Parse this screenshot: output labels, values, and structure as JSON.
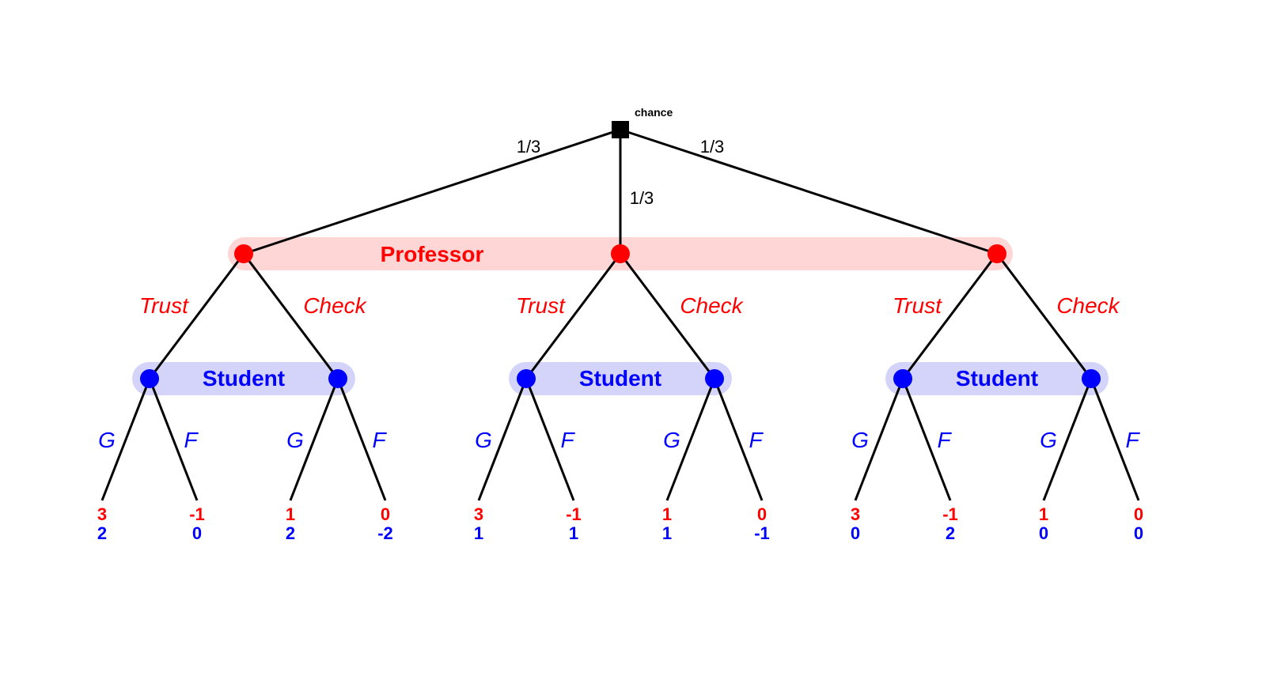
{
  "colors": {
    "professor": "#ff0000",
    "student": "#0000ff",
    "professor_band": "#ffd6d6",
    "student_band": "#d4d4fb",
    "edge": "#000000",
    "chance_node": "#000000"
  },
  "chance": {
    "label": "chance",
    "probabilities": [
      "1/3",
      "1/3",
      "1/3"
    ]
  },
  "professor": {
    "label": "Professor",
    "actions": [
      "Trust",
      "Check"
    ]
  },
  "student": {
    "label": "Student",
    "actions": [
      "G",
      "F"
    ]
  },
  "payoffs": [
    [
      [
        {
          "professor": "3",
          "student": "2"
        },
        {
          "professor": "-1",
          "student": "0"
        }
      ],
      [
        {
          "professor": "1",
          "student": "2"
        },
        {
          "professor": "0",
          "student": "-2"
        }
      ]
    ],
    [
      [
        {
          "professor": "3",
          "student": "1"
        },
        {
          "professor": "-1",
          "student": "1"
        }
      ],
      [
        {
          "professor": "1",
          "student": "1"
        },
        {
          "professor": "0",
          "student": "-1"
        }
      ]
    ],
    [
      [
        {
          "professor": "3",
          "student": "0"
        },
        {
          "professor": "-1",
          "student": "2"
        }
      ],
      [
        {
          "professor": "1",
          "student": "0"
        },
        {
          "professor": "0",
          "student": "0"
        }
      ]
    ]
  ]
}
